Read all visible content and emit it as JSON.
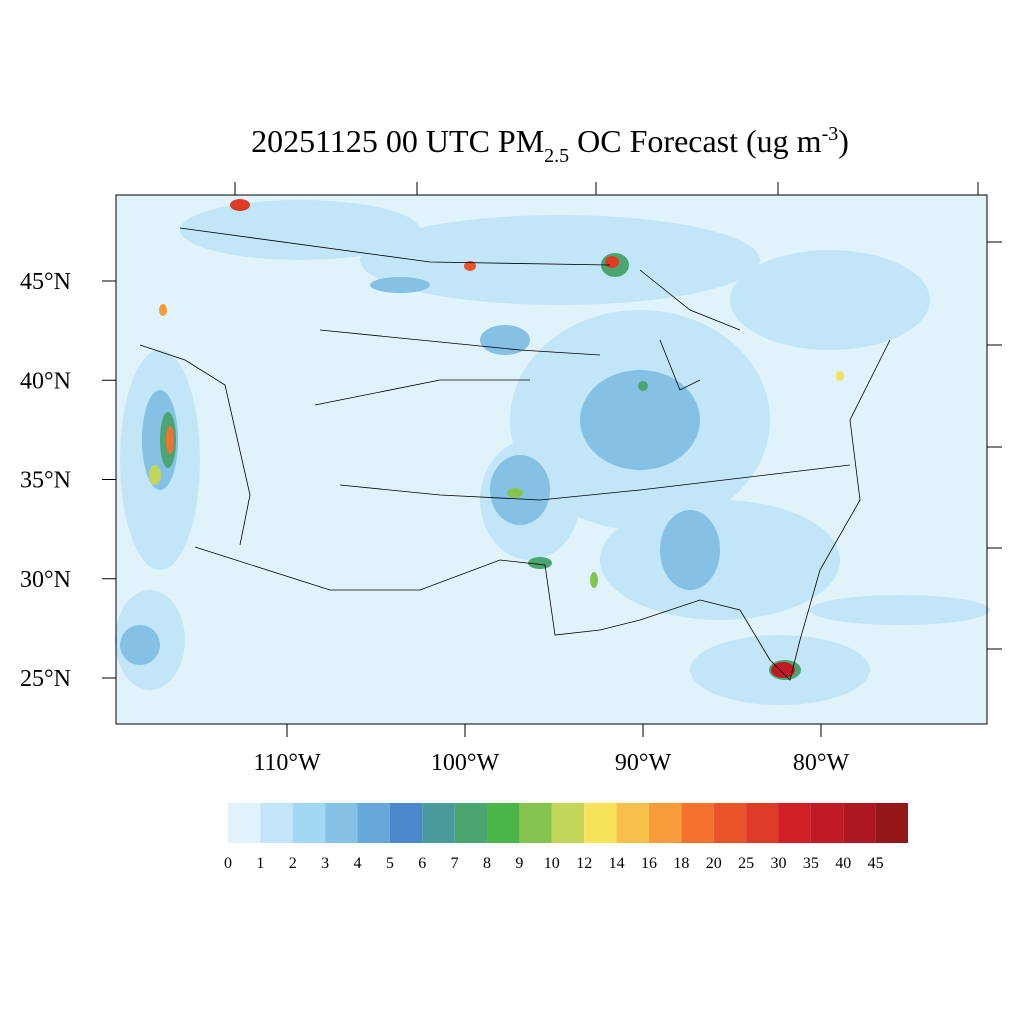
{
  "title": {
    "main": "20251125 00 UTC PM",
    "sub": "2.5",
    "mid": " OC Forecast (ug m",
    "sup": "-3",
    "end": ")"
  },
  "lat_ticks": [
    {
      "value": 45,
      "label": "45°N"
    },
    {
      "value": 40,
      "label": "40°N"
    },
    {
      "value": 35,
      "label": "35°N"
    },
    {
      "value": 30,
      "label": "30°N"
    },
    {
      "value": 25,
      "label": "25°N"
    }
  ],
  "lon_ticks": [
    {
      "value": -110,
      "label": "110°W"
    },
    {
      "value": -100,
      "label": "100°W"
    },
    {
      "value": -90,
      "label": "90°W"
    },
    {
      "value": -80,
      "label": "80°W"
    }
  ],
  "colorbar": {
    "levels": [
      0,
      1,
      2,
      3,
      4,
      5,
      6,
      7,
      8,
      9,
      10,
      12,
      14,
      16,
      18,
      20,
      25,
      30,
      35,
      40,
      45
    ],
    "colors": [
      "#e0f3fb",
      "#c2e6f7",
      "#a3d8f4",
      "#85c0e5",
      "#66a8da",
      "#4a88cb",
      "#4a9a9c",
      "#4aa570",
      "#4cb54a",
      "#85c44e",
      "#c2d65a",
      "#f7e35a",
      "#f8c04a",
      "#f89c3c",
      "#f4722e",
      "#ea5428",
      "#dd3b26",
      "#d11f26",
      "#c01a24",
      "#ad1820",
      "#951619"
    ]
  }
}
